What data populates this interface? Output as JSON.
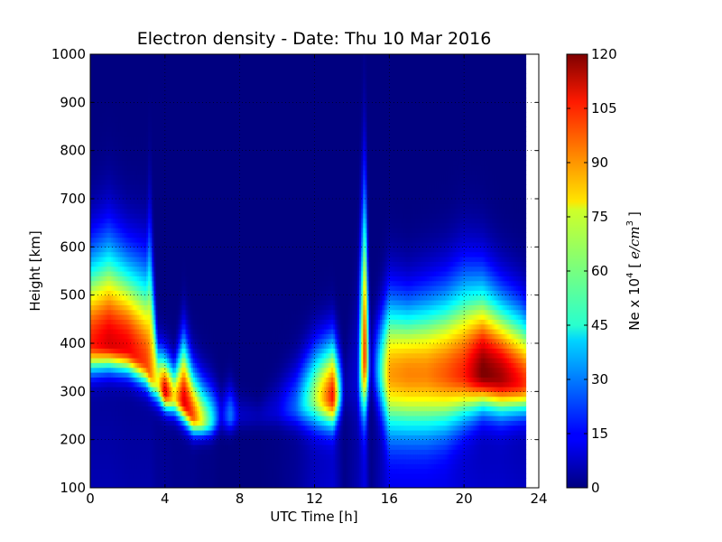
{
  "chart_data": {
    "type": "heatmap",
    "title": "Electron density - Date: Thu 10 Mar 2016",
    "xlabel": "UTC Time [h]",
    "ylabel": "Height [km]",
    "colorbar_label": "Ne x 10^4 [e/cm^3]",
    "colorbar_label_parts": {
      "prefix": "Ne x 10",
      "exponent": "4",
      "unit_open": "[",
      "unit": "e/cm",
      "unit_exponent": "3",
      "unit_close": "]"
    },
    "xlim": [
      0,
      24
    ],
    "ylim": [
      100,
      1000
    ],
    "clim": [
      0,
      120
    ],
    "colormap": "jet",
    "grid": "dotted",
    "x_ticks": [
      "0",
      "4",
      "8",
      "12",
      "16",
      "20",
      "24"
    ],
    "y_ticks": [
      "100",
      "200",
      "300",
      "400",
      "500",
      "600",
      "700",
      "800",
      "900",
      "1000"
    ],
    "colorbar_ticks": [
      "0",
      "15",
      "30",
      "45",
      "60",
      "75",
      "90",
      "105",
      "120"
    ],
    "data_extent_hours": [
      0,
      23.3
    ],
    "profiles": [
      {
        "t": 0.0,
        "peak_height": 400,
        "peak_ne": 100,
        "width_below": 55,
        "width_above": 170,
        "background_ne": 6
      },
      {
        "t": 1.0,
        "peak_height": 400,
        "peak_ne": 108,
        "width_below": 50,
        "width_above": 190,
        "background_ne": 6
      },
      {
        "t": 2.0,
        "peak_height": 390,
        "peak_ne": 105,
        "width_below": 48,
        "width_above": 170,
        "background_ne": 5
      },
      {
        "t": 3.0,
        "peak_height": 360,
        "peak_ne": 96,
        "width_below": 45,
        "width_above": 180,
        "background_ne": 5
      },
      {
        "t": 3.2,
        "peak_height": 340,
        "peak_ne": 90,
        "width_below": 40,
        "width_above": 250,
        "background_ne": 5
      },
      {
        "t": 3.6,
        "peak_height": 320,
        "peak_ne": 70,
        "width_below": 40,
        "width_above": 70,
        "background_ne": 3
      },
      {
        "t": 4.0,
        "peak_height": 300,
        "peak_ne": 108,
        "width_below": 35,
        "width_above": 70,
        "background_ne": 3
      },
      {
        "t": 4.5,
        "peak_height": 290,
        "peak_ne": 75,
        "width_below": 35,
        "width_above": 60,
        "background_ne": 2
      },
      {
        "t": 5.0,
        "peak_height": 280,
        "peak_ne": 108,
        "width_below": 40,
        "width_above": 120,
        "background_ne": 2
      },
      {
        "t": 5.5,
        "peak_height": 250,
        "peak_ne": 95,
        "width_below": 35,
        "width_above": 90,
        "background_ne": 2
      },
      {
        "t": 6.0,
        "peak_height": 240,
        "peak_ne": 70,
        "width_below": 30,
        "width_above": 80,
        "background_ne": 1
      },
      {
        "t": 6.5,
        "peak_height": 240,
        "peak_ne": 45,
        "width_below": 30,
        "width_above": 70,
        "background_ne": 1
      },
      {
        "t": 7.0,
        "peak_height": 250,
        "peak_ne": 12,
        "width_below": 30,
        "width_above": 50,
        "background_ne": 0
      },
      {
        "t": 7.5,
        "peak_height": 250,
        "peak_ne": 30,
        "width_below": 30,
        "width_above": 60,
        "background_ne": 0
      },
      {
        "t": 8.0,
        "peak_height": 250,
        "peak_ne": 8,
        "width_below": 25,
        "width_above": 40,
        "background_ne": 0
      },
      {
        "t": 9.0,
        "peak_height": 250,
        "peak_ne": 6,
        "width_below": 25,
        "width_above": 30,
        "background_ne": 0
      },
      {
        "t": 10.0,
        "peak_height": 260,
        "peak_ne": 10,
        "width_below": 30,
        "width_above": 60,
        "background_ne": 1
      },
      {
        "t": 11.0,
        "peak_height": 270,
        "peak_ne": 25,
        "width_below": 40,
        "width_above": 80,
        "background_ne": 3
      },
      {
        "t": 12.0,
        "peak_height": 290,
        "peak_ne": 60,
        "width_below": 60,
        "width_above": 100,
        "background_ne": 8
      },
      {
        "t": 13.0,
        "peak_height": 290,
        "peak_ne": 100,
        "width_below": 60,
        "width_above": 110,
        "background_ne": 10
      },
      {
        "t": 13.6,
        "peak_height": 300,
        "peak_ne": 4,
        "width_below": 40,
        "width_above": 60,
        "background_ne": 1
      },
      {
        "t": 14.3,
        "peak_height": 330,
        "peak_ne": 8,
        "width_below": 80,
        "width_above": 200,
        "background_ne": 6
      },
      {
        "t": 14.7,
        "peak_height": 380,
        "peak_ne": 105,
        "width_below": 120,
        "width_above": 320,
        "background_ne": 12
      },
      {
        "t": 15.0,
        "peak_height": 350,
        "peak_ne": 3,
        "width_below": 50,
        "width_above": 80,
        "background_ne": 1
      },
      {
        "t": 16.0,
        "peak_height": 340,
        "peak_ne": 82,
        "width_below": 120,
        "width_above": 150,
        "background_ne": 12
      },
      {
        "t": 17.0,
        "peak_height": 340,
        "peak_ne": 85,
        "width_below": 120,
        "width_above": 140,
        "background_ne": 12
      },
      {
        "t": 18.0,
        "peak_height": 340,
        "peak_ne": 85,
        "width_below": 120,
        "width_above": 150,
        "background_ne": 12
      },
      {
        "t": 19.0,
        "peak_height": 340,
        "peak_ne": 90,
        "width_below": 110,
        "width_above": 160,
        "background_ne": 12
      },
      {
        "t": 20.0,
        "peak_height": 340,
        "peak_ne": 98,
        "width_below": 90,
        "width_above": 180,
        "background_ne": 10
      },
      {
        "t": 21.0,
        "peak_height": 340,
        "peak_ne": 118,
        "width_below": 70,
        "width_above": 170,
        "background_ne": 9
      },
      {
        "t": 22.0,
        "peak_height": 330,
        "peak_ne": 112,
        "width_below": 70,
        "width_above": 150,
        "background_ne": 9
      },
      {
        "t": 23.0,
        "peak_height": 320,
        "peak_ne": 100,
        "width_below": 60,
        "width_above": 140,
        "background_ne": 8
      },
      {
        "t": 23.3,
        "peak_height": 320,
        "peak_ne": 95,
        "width_below": 60,
        "width_above": 130,
        "background_ne": 8
      }
    ]
  }
}
